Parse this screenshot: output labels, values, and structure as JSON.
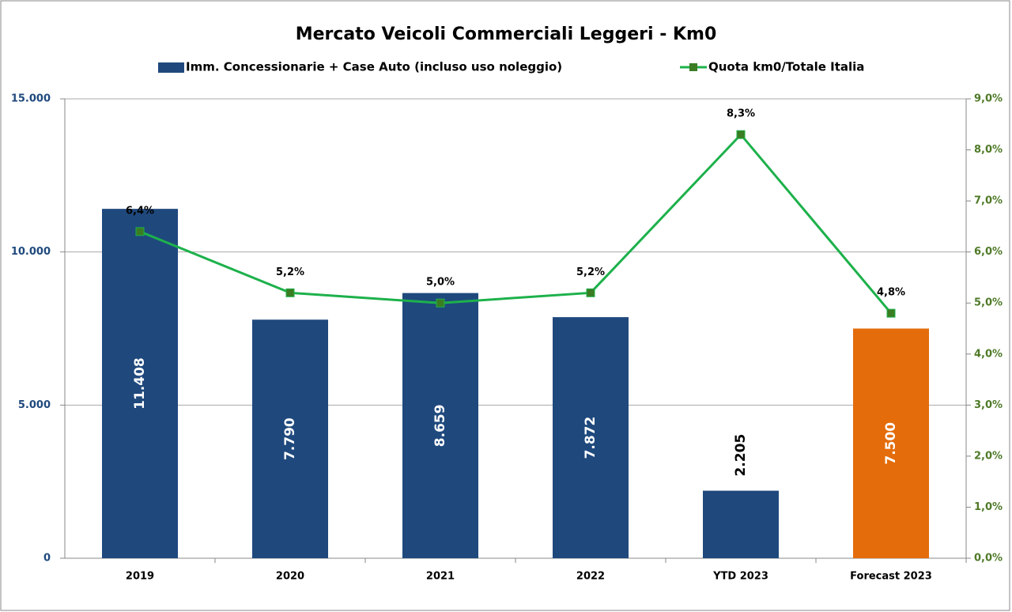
{
  "chart_data": {
    "type": "bar",
    "title": "Mercato Veicoli Commerciali Leggeri - Km0",
    "categories": [
      "2019",
      "2020",
      "2021",
      "2022",
      "YTD 2023",
      "Forecast 2023"
    ],
    "series": [
      {
        "name": "Imm. Concessionarie + Case Auto (incluso uso noleggio)",
        "type": "bar",
        "color": "#1f497d",
        "colors": [
          "#1f497d",
          "#1f497d",
          "#1f497d",
          "#1f497d",
          "#1f497d",
          "#e46c0a"
        ],
        "values": [
          11408,
          7790,
          8659,
          7872,
          2205,
          7500
        ],
        "value_labels": [
          "11.408",
          "7.790",
          "8.659",
          "7.872",
          "2.205",
          "7.500"
        ]
      },
      {
        "name": "Quota km0/Totale Italia",
        "type": "line",
        "axis": "y2",
        "color": "#1db14b",
        "marker_color": "#3a7d22",
        "values": [
          6.4,
          5.2,
          5.0,
          5.2,
          8.3,
          4.8
        ],
        "value_labels": [
          "6,4%",
          "5,2%",
          "5,0%",
          "5,2%",
          "8,3%",
          "4,8%"
        ]
      }
    ],
    "ylim": [
      0,
      15000
    ],
    "yticks": [
      0,
      {
        "value": 5000,
        "label": "5.000"
      },
      {
        "value": 10000,
        "label": "10.000"
      },
      {
        "value": 15000,
        "label": "15.000"
      }
    ],
    "y2lim": [
      0,
      9
    ],
    "y2ticks": [
      {
        "value": 0,
        "label": "0,0%"
      },
      {
        "value": 1,
        "label": "1,0%"
      },
      {
        "value": 2,
        "label": "2,0%"
      },
      {
        "value": 3,
        "label": "3,0%"
      },
      {
        "value": 4,
        "label": "4,0%"
      },
      {
        "value": 5,
        "label": "5,0%"
      },
      {
        "value": 6,
        "label": "6,0%"
      },
      {
        "value": 7,
        "label": "7,0%"
      },
      {
        "value": 8,
        "label": "8,0%"
      },
      {
        "value": 9,
        "label": "9,0%"
      }
    ],
    "grid": true,
    "legend": "top"
  }
}
